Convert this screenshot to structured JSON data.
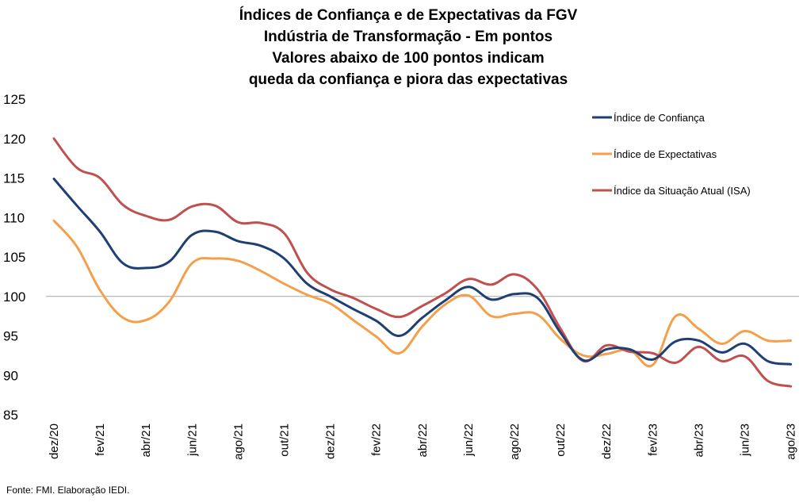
{
  "chart_data": {
    "type": "line",
    "title_lines": [
      "Índices de Confiança e de Expectativas da FGV",
      "Indústria de Transformação - Em pontos",
      "Valores abaixo de 100 pontos indicam",
      "queda da confiança e piora das expectativas"
    ],
    "x": [
      "dez/20",
      "jan/21",
      "fev/21",
      "mar/21",
      "abr/21",
      "mai/21",
      "jun/21",
      "jul/21",
      "ago/21",
      "set/21",
      "out/21",
      "nov/21",
      "dez/21",
      "jan/22",
      "fev/22",
      "mar/22",
      "abr/22",
      "mai/22",
      "jun/22",
      "jul/22",
      "ago/22",
      "set/22",
      "out/22",
      "nov/22",
      "dez/22",
      "jan/23",
      "fev/23",
      "mar/23",
      "abr/23",
      "mai/23",
      "jun/23",
      "jul/23",
      "ago/23"
    ],
    "x_tick_labels": [
      "dez/20",
      "fev/21",
      "abr/21",
      "jun/21",
      "ago/21",
      "out/21",
      "dez/21",
      "fev/22",
      "abr/22",
      "jun/22",
      "ago/22",
      "out/22",
      "dez/22",
      "fev/23",
      "abr/23",
      "jun/23",
      "ago/23"
    ],
    "y_ticks": [
      85,
      90,
      95,
      100,
      105,
      110,
      115,
      120,
      125
    ],
    "ylim": [
      85,
      125
    ],
    "reference_line": 100,
    "legend_position": "top-right",
    "series": [
      {
        "name": "Índice de Confiança",
        "color": "#1F3F73",
        "values": [
          114.9,
          111.5,
          108.2,
          104.2,
          103.6,
          104.4,
          107.8,
          108.2,
          107.0,
          106.4,
          104.8,
          101.6,
          100.0,
          98.4,
          96.9,
          95.0,
          97.3,
          99.5,
          101.2,
          99.6,
          100.3,
          99.8,
          95.4,
          91.9,
          93.3,
          93.3,
          92.0,
          94.3,
          94.4,
          92.9,
          94.0,
          91.8,
          91.4
        ]
      },
      {
        "name": "Índice de Expectativas",
        "color": "#F4A04A",
        "values": [
          109.6,
          106.3,
          100.8,
          97.3,
          97.0,
          99.3,
          104.2,
          104.8,
          104.5,
          103.2,
          101.6,
          100.2,
          99.1,
          97.0,
          94.9,
          92.8,
          96.2,
          99.0,
          100.1,
          97.5,
          97.8,
          97.7,
          94.6,
          92.5,
          92.7,
          93.2,
          91.3,
          97.5,
          95.9,
          94.0,
          95.6,
          94.4,
          94.4
        ]
      },
      {
        "name": "Índice da Situação Atual (ISA)",
        "color": "#C0504D",
        "values": [
          120.0,
          116.3,
          115.0,
          111.6,
          110.2,
          109.7,
          111.4,
          111.5,
          109.4,
          109.3,
          108.0,
          103.0,
          100.9,
          99.8,
          98.4,
          97.4,
          98.8,
          100.4,
          102.2,
          101.5,
          102.8,
          100.9,
          95.9,
          91.8,
          93.8,
          93.0,
          92.8,
          91.6,
          93.6,
          91.8,
          92.4,
          89.3,
          88.6
        ]
      }
    ],
    "source": "Fonte: FMI. Elaboração IEDI."
  }
}
